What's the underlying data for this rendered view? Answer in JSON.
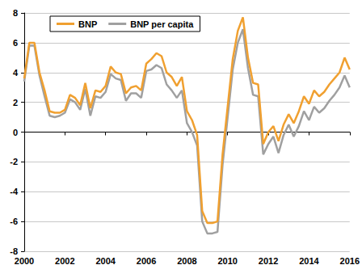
{
  "chart_data": {
    "type": "line",
    "x": [
      2000,
      2000.25,
      2000.5,
      2000.75,
      2001,
      2001.25,
      2001.5,
      2001.75,
      2002,
      2002.25,
      2002.5,
      2002.75,
      2003,
      2003.25,
      2003.5,
      2003.75,
      2004,
      2004.25,
      2004.5,
      2004.75,
      2005,
      2005.25,
      2005.5,
      2005.75,
      2006,
      2006.25,
      2006.5,
      2006.75,
      2007,
      2007.25,
      2007.5,
      2007.75,
      2008,
      2008.25,
      2008.5,
      2008.75,
      2009,
      2009.25,
      2009.5,
      2009.75,
      2010,
      2010.25,
      2010.5,
      2010.75,
      2011,
      2011.25,
      2011.5,
      2011.75,
      2012,
      2012.25,
      2012.5,
      2012.75,
      2013,
      2013.25,
      2013.5,
      2013.75,
      2014,
      2014.25,
      2014.5,
      2014.75,
      2015,
      2015.25,
      2015.5,
      2015.75,
      2016
    ],
    "series": [
      {
        "name": "BNP",
        "color": "#f0a030",
        "values": [
          3.6,
          6.0,
          6.0,
          4.0,
          2.8,
          1.4,
          1.3,
          1.3,
          1.5,
          2.5,
          2.3,
          1.8,
          3.3,
          1.6,
          2.8,
          2.7,
          3.1,
          4.4,
          4.0,
          3.9,
          2.6,
          3.0,
          3.1,
          2.8,
          4.6,
          4.9,
          5.3,
          5.1,
          4.0,
          3.7,
          3.1,
          3.7,
          1.4,
          0.8,
          -0.2,
          -5.3,
          -6.1,
          -6.1,
          -6.0,
          -1.5,
          1.7,
          4.9,
          6.8,
          7.7,
          5.0,
          3.3,
          3.2,
          -0.8,
          0.0,
          0.4,
          -0.6,
          0.5,
          1.2,
          0.6,
          1.4,
          2.4,
          1.9,
          2.8,
          2.4,
          2.7,
          3.2,
          3.6,
          4.0,
          5.0,
          4.2
        ]
      },
      {
        "name": "BNP per capita",
        "color": "#a0a0a0",
        "values": [
          3.4,
          5.8,
          5.8,
          3.8,
          2.4,
          1.1,
          1.0,
          1.1,
          1.3,
          2.2,
          2.0,
          1.5,
          2.9,
          1.1,
          2.4,
          2.3,
          2.7,
          3.9,
          3.6,
          3.5,
          2.1,
          2.6,
          2.6,
          2.3,
          4.1,
          4.2,
          4.5,
          4.3,
          3.2,
          2.8,
          2.3,
          2.8,
          0.6,
          0.0,
          -0.9,
          -6.0,
          -6.8,
          -6.8,
          -6.7,
          -2.2,
          1.0,
          4.2,
          6.0,
          6.9,
          4.3,
          2.5,
          2.4,
          -1.5,
          -0.8,
          -0.3,
          -1.4,
          -0.2,
          0.5,
          -0.3,
          0.4,
          1.4,
          0.8,
          1.7,
          1.3,
          1.6,
          2.1,
          2.5,
          3.0,
          3.8,
          3.0
        ]
      }
    ],
    "xlim": [
      2000,
      2016
    ],
    "xticks": [
      2000,
      2002,
      2004,
      2006,
      2008,
      2010,
      2012,
      2014,
      2016
    ],
    "ylim": [
      -8,
      8
    ],
    "yticks": [
      -8,
      -6,
      -4,
      -2,
      0,
      2,
      4,
      6,
      8
    ],
    "grid": true,
    "legend": "top-left"
  }
}
